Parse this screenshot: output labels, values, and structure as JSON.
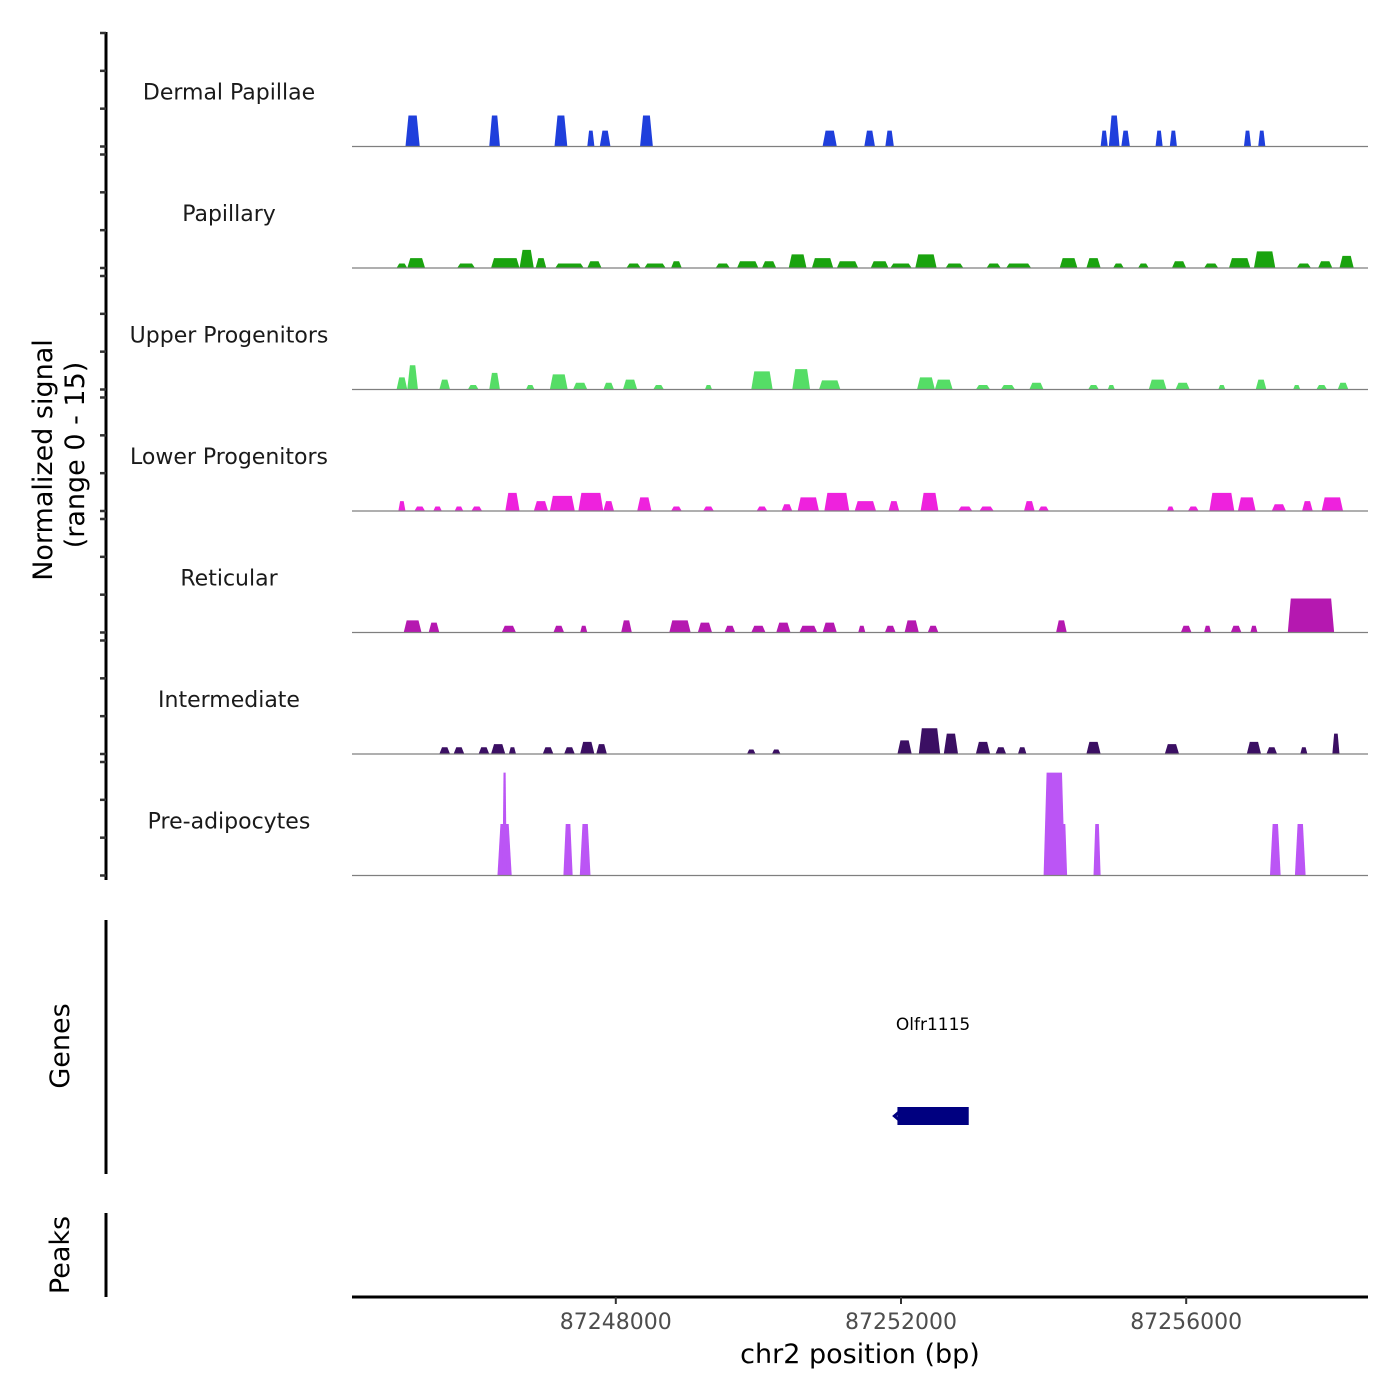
{
  "chart_data": {
    "type": "area",
    "title": "",
    "ylabel": "Normalized signal\n(range 0 - 15)",
    "ylabel_lines": [
      "Normalized signal",
      "(range 0 - 15)"
    ],
    "xlabel": "chr2 position (bp)",
    "chromosome": "chr2",
    "xlim": [
      87244300,
      87258550
    ],
    "ylim": [
      0,
      15
    ],
    "x_ticks": [
      87248000,
      87252000,
      87256000
    ],
    "x_tick_labels": [
      "87248000",
      "87252000",
      "87256000"
    ],
    "grid": false,
    "legend": "none",
    "tracks": [
      {
        "name": "Dermal Papillae",
        "color": "#1f3fdc",
        "peaks": [
          [
            87245150,
            200,
            4.1
          ],
          [
            87246300,
            150,
            4.1
          ],
          [
            87247230,
            180,
            4.1
          ],
          [
            87247650,
            100,
            2.1
          ],
          [
            87247850,
            150,
            2.1
          ],
          [
            87248430,
            180,
            4.1
          ],
          [
            87251000,
            200,
            2.1
          ],
          [
            87251560,
            150,
            2.1
          ],
          [
            87251840,
            120,
            2.1
          ],
          [
            87254850,
            100,
            2.1
          ],
          [
            87254990,
            150,
            4.1
          ],
          [
            87255150,
            120,
            2.1
          ],
          [
            87255620,
            100,
            2.1
          ],
          [
            87255820,
            100,
            2.1
          ],
          [
            87256860,
            100,
            2.1
          ],
          [
            87257060,
            100,
            2.1
          ]
        ]
      },
      {
        "name": "Papillary",
        "color": "#1aa30f",
        "peaks": [
          [
            87245000,
            150,
            0.6
          ],
          [
            87245200,
            250,
            1.3
          ],
          [
            87245900,
            250,
            0.6
          ],
          [
            87246450,
            400,
            1.3
          ],
          [
            87246750,
            200,
            2.4
          ],
          [
            87246950,
            150,
            1.3
          ],
          [
            87247350,
            400,
            0.6
          ],
          [
            87247700,
            200,
            0.9
          ],
          [
            87248250,
            200,
            0.6
          ],
          [
            87248550,
            300,
            0.6
          ],
          [
            87248850,
            150,
            0.9
          ],
          [
            87249500,
            200,
            0.6
          ],
          [
            87249850,
            300,
            0.9
          ],
          [
            87250150,
            200,
            0.9
          ],
          [
            87250550,
            250,
            1.8
          ],
          [
            87250900,
            300,
            1.3
          ],
          [
            87251250,
            300,
            0.9
          ],
          [
            87251700,
            250,
            0.9
          ],
          [
            87252000,
            300,
            0.6
          ],
          [
            87252350,
            300,
            1.8
          ],
          [
            87252750,
            250,
            0.6
          ],
          [
            87253300,
            200,
            0.6
          ],
          [
            87253650,
            350,
            0.6
          ],
          [
            87254350,
            250,
            1.3
          ],
          [
            87254700,
            200,
            1.3
          ],
          [
            87255050,
            150,
            0.6
          ],
          [
            87255400,
            150,
            0.6
          ],
          [
            87255900,
            200,
            0.9
          ],
          [
            87256350,
            200,
            0.6
          ],
          [
            87256750,
            300,
            1.3
          ],
          [
            87257100,
            300,
            2.2
          ],
          [
            87257650,
            200,
            0.6
          ],
          [
            87257950,
            200,
            0.9
          ],
          [
            87258250,
            200,
            1.6
          ]
        ]
      },
      {
        "name": "Upper Progenitors",
        "color": "#55dd66",
        "peaks": [
          [
            87245000,
            150,
            1.6
          ],
          [
            87245150,
            150,
            3.2
          ],
          [
            87245600,
            150,
            1.3
          ],
          [
            87246000,
            150,
            0.6
          ],
          [
            87246300,
            150,
            2.2
          ],
          [
            87246800,
            120,
            0.6
          ],
          [
            87247200,
            250,
            2.0
          ],
          [
            87247500,
            200,
            0.9
          ],
          [
            87247900,
            150,
            0.9
          ],
          [
            87248200,
            200,
            1.3
          ],
          [
            87248600,
            150,
            0.6
          ],
          [
            87249300,
            100,
            0.6
          ],
          [
            87250050,
            300,
            2.4
          ],
          [
            87250600,
            250,
            2.7
          ],
          [
            87251000,
            300,
            1.2
          ],
          [
            87252350,
            250,
            1.6
          ],
          [
            87252600,
            250,
            1.3
          ],
          [
            87253150,
            200,
            0.6
          ],
          [
            87253500,
            200,
            0.6
          ],
          [
            87253900,
            200,
            0.9
          ],
          [
            87254700,
            150,
            0.6
          ],
          [
            87254950,
            100,
            0.6
          ],
          [
            87255600,
            250,
            1.3
          ],
          [
            87255950,
            200,
            0.9
          ],
          [
            87256500,
            100,
            0.6
          ],
          [
            87257050,
            150,
            1.3
          ],
          [
            87257550,
            100,
            0.6
          ],
          [
            87257900,
            150,
            0.6
          ],
          [
            87258200,
            150,
            0.9
          ]
        ]
      },
      {
        "name": "Lower Progenitors",
        "color": "#ee22dd",
        "peaks": [
          [
            87245000,
            100,
            1.3
          ],
          [
            87245250,
            150,
            0.6
          ],
          [
            87245500,
            120,
            0.6
          ],
          [
            87245800,
            120,
            0.6
          ],
          [
            87246050,
            150,
            0.6
          ],
          [
            87246550,
            200,
            2.4
          ],
          [
            87246950,
            200,
            1.3
          ],
          [
            87247250,
            350,
            2.0
          ],
          [
            87247650,
            350,
            2.4
          ],
          [
            87247900,
            150,
            1.3
          ],
          [
            87248400,
            200,
            1.8
          ],
          [
            87248850,
            150,
            0.6
          ],
          [
            87249300,
            150,
            0.6
          ],
          [
            87250050,
            150,
            0.6
          ],
          [
            87250400,
            150,
            0.9
          ],
          [
            87250700,
            300,
            1.8
          ],
          [
            87251100,
            350,
            2.4
          ],
          [
            87251500,
            300,
            1.3
          ],
          [
            87251900,
            150,
            1.3
          ],
          [
            87252400,
            250,
            2.4
          ],
          [
            87252900,
            200,
            0.6
          ],
          [
            87253200,
            200,
            0.6
          ],
          [
            87253800,
            150,
            1.3
          ],
          [
            87254000,
            150,
            0.6
          ],
          [
            87255780,
            100,
            0.6
          ],
          [
            87256100,
            150,
            0.6
          ],
          [
            87256500,
            350,
            2.4
          ],
          [
            87256850,
            250,
            1.8
          ],
          [
            87257300,
            200,
            0.9
          ],
          [
            87257700,
            150,
            1.3
          ],
          [
            87258050,
            300,
            1.8
          ]
        ]
      },
      {
        "name": "Reticular",
        "color": "#b518b0",
        "peaks": [
          [
            87245150,
            250,
            1.6
          ],
          [
            87245450,
            150,
            1.3
          ],
          [
            87246500,
            200,
            0.9
          ],
          [
            87247200,
            150,
            0.9
          ],
          [
            87247550,
            100,
            0.9
          ],
          [
            87248150,
            150,
            1.6
          ],
          [
            87248900,
            300,
            1.6
          ],
          [
            87249250,
            200,
            1.3
          ],
          [
            87249600,
            150,
            0.9
          ],
          [
            87250000,
            200,
            0.9
          ],
          [
            87250350,
            200,
            1.3
          ],
          [
            87250700,
            250,
            0.9
          ],
          [
            87251000,
            200,
            1.3
          ],
          [
            87251450,
            100,
            0.9
          ],
          [
            87251850,
            150,
            0.9
          ],
          [
            87252150,
            200,
            1.6
          ],
          [
            87252450,
            150,
            0.9
          ],
          [
            87254250,
            150,
            1.6
          ],
          [
            87256000,
            150,
            0.9
          ],
          [
            87256300,
            100,
            0.9
          ],
          [
            87256700,
            150,
            0.9
          ],
          [
            87256950,
            100,
            0.9
          ],
          [
            87257750,
            650,
            4.5
          ]
        ]
      },
      {
        "name": "Intermediate",
        "color": "#3b0f63",
        "peaks": [
          [
            87245600,
            150,
            0.9
          ],
          [
            87245800,
            150,
            0.9
          ],
          [
            87246150,
            150,
            0.9
          ],
          [
            87246350,
            200,
            1.3
          ],
          [
            87246550,
            100,
            0.9
          ],
          [
            87247050,
            150,
            0.9
          ],
          [
            87247350,
            150,
            0.9
          ],
          [
            87247600,
            200,
            1.6
          ],
          [
            87247800,
            150,
            1.3
          ],
          [
            87249900,
            120,
            0.6
          ],
          [
            87250250,
            120,
            0.6
          ],
          [
            87252050,
            200,
            1.8
          ],
          [
            87252400,
            300,
            3.4
          ],
          [
            87252700,
            200,
            2.7
          ],
          [
            87253150,
            200,
            1.6
          ],
          [
            87253400,
            150,
            0.9
          ],
          [
            87253700,
            120,
            0.9
          ],
          [
            87254700,
            200,
            1.6
          ],
          [
            87255800,
            200,
            1.3
          ],
          [
            87256950,
            200,
            1.6
          ],
          [
            87257200,
            150,
            0.9
          ],
          [
            87257650,
            100,
            0.9
          ],
          [
            87258100,
            100,
            2.7
          ]
        ]
      },
      {
        "name": "Pre-adipocytes",
        "color": "#bb55f5",
        "peaks": [
          [
            87246440,
            200,
            6.8
          ],
          [
            87246440,
            60,
            13.6
          ],
          [
            87247330,
            130,
            6.8
          ],
          [
            87247570,
            150,
            6.8
          ],
          [
            87254150,
            300,
            13.6
          ],
          [
            87254280,
            100,
            6.8
          ],
          [
            87254750,
            100,
            6.8
          ],
          [
            87257250,
            150,
            6.8
          ],
          [
            87257600,
            150,
            6.8
          ]
        ]
      }
    ],
    "genes": {
      "label": "Genes",
      "items": [
        {
          "name": "Olfr1115",
          "start": 87251950,
          "end": 87252950,
          "strand": "-",
          "color": "#000080"
        }
      ]
    },
    "peaks_track": {
      "label": "Peaks",
      "items": []
    }
  }
}
